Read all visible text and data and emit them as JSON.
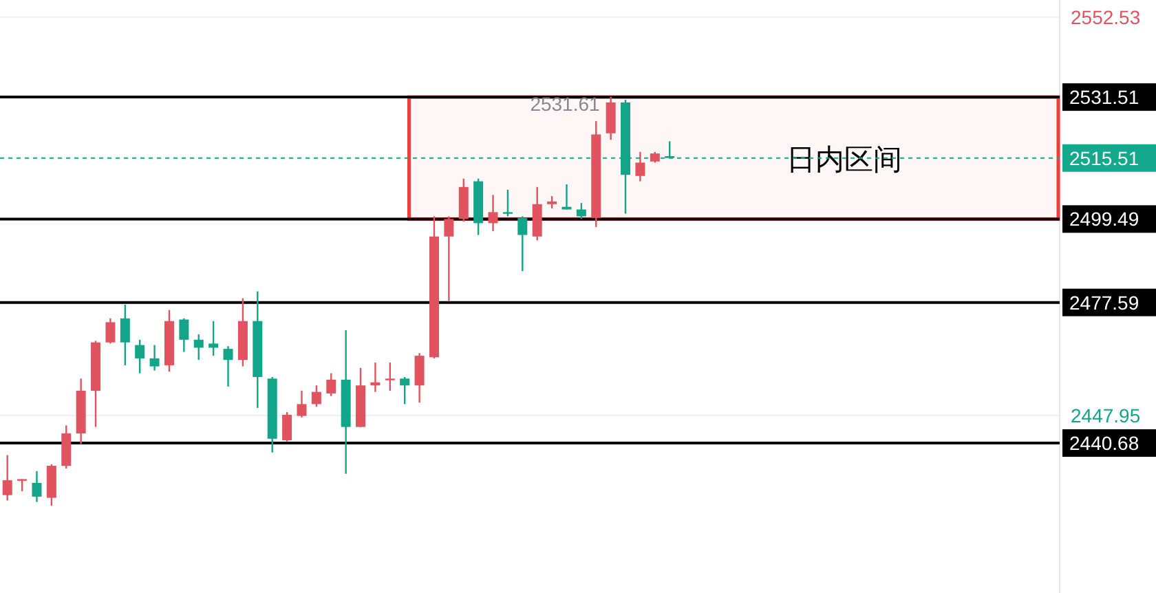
{
  "chart_data": {
    "type": "candlestick",
    "categories": [
      null,
      null,
      null,
      null,
      null,
      null,
      null,
      null,
      null,
      null,
      null,
      null,
      null,
      null,
      null,
      null,
      null,
      null,
      null,
      null,
      null,
      null,
      null,
      null,
      null,
      null,
      null,
      null,
      null,
      null,
      null,
      null,
      null,
      null,
      null,
      null,
      null,
      null,
      null,
      null,
      null,
      null,
      null,
      null,
      null,
      null,
      null,
      null,
      null,
      null,
      null,
      null,
      null,
      null,
      null,
      null,
      null,
      null,
      null,
      null,
      null,
      null,
      null,
      null,
      null,
      null,
      null,
      null,
      null,
      null,
      null,
      null
    ],
    "ohlc": [
      [
        2427.0,
        2437.5,
        2425.6,
        2430.9
      ],
      [
        2430.9,
        2431.2,
        2428.0,
        2431.2
      ],
      [
        2430.2,
        2433.3,
        2425.2,
        2426.6
      ],
      [
        2426.3,
        2435.1,
        2424.2,
        2434.7
      ],
      [
        2434.7,
        2445.3,
        2434.0,
        2443.2
      ],
      [
        2443.2,
        2457.6,
        2440.4,
        2454.4
      ],
      [
        2454.4,
        2467.5,
        2444.9,
        2467.1
      ],
      [
        2467.1,
        2473.4,
        2466.8,
        2472.4
      ],
      [
        2473.4,
        2477.0,
        2461.1,
        2467.1
      ],
      [
        2466.4,
        2467.8,
        2459.0,
        2462.9
      ],
      [
        2462.9,
        2466.4,
        2459.7,
        2460.8
      ],
      [
        2461.1,
        2475.6,
        2459.4,
        2472.7
      ],
      [
        2473.1,
        2473.4,
        2464.6,
        2467.8
      ],
      [
        2467.8,
        2469.2,
        2462.5,
        2465.7
      ],
      [
        2466.8,
        2472.7,
        2463.6,
        2465.7
      ],
      [
        2465.4,
        2466.1,
        2455.5,
        2462.5
      ],
      [
        2462.5,
        2478.7,
        2460.8,
        2472.7
      ],
      [
        2472.7,
        2480.5,
        2449.9,
        2458.0
      ],
      [
        2457.6,
        2458.0,
        2438.2,
        2441.8
      ],
      [
        2441.4,
        2448.8,
        2441.1,
        2448.1
      ],
      [
        2447.8,
        2454.4,
        2447.4,
        2450.9
      ],
      [
        2450.9,
        2455.8,
        2450.2,
        2454.1
      ],
      [
        2453.7,
        2459.0,
        2453.0,
        2457.3
      ],
      [
        2457.3,
        2470.3,
        2432.6,
        2444.9
      ],
      [
        2444.9,
        2460.4,
        2444.9,
        2455.8
      ],
      [
        2455.8,
        2461.8,
        2454.1,
        2456.6
      ],
      [
        2457.3,
        2461.8,
        2454.4,
        2457.6
      ],
      [
        2457.6,
        2458.0,
        2450.9,
        2455.8
      ],
      [
        2455.8,
        2464.3,
        2451.3,
        2463.6
      ],
      [
        2463.2,
        2500.2,
        2462.9,
        2494.9
      ],
      [
        2494.9,
        2500.2,
        2478.0,
        2499.5
      ],
      [
        2499.5,
        2510.1,
        2498.8,
        2507.9
      ],
      [
        2509.4,
        2510.1,
        2495.3,
        2498.4
      ],
      [
        2498.4,
        2505.8,
        2496.3,
        2501.3
      ],
      [
        2501.3,
        2507.2,
        2500.2,
        2500.9
      ],
      [
        2499.8,
        2500.2,
        2485.8,
        2495.3
      ],
      [
        2494.9,
        2507.9,
        2493.9,
        2503.4
      ],
      [
        2503.4,
        2505.5,
        2502.3,
        2504.1
      ],
      [
        2502.7,
        2508.6,
        2502.0,
        2502.0
      ],
      [
        2502.0,
        2503.7,
        2499.5,
        2500.2
      ],
      [
        2499.8,
        2525.2,
        2497.4,
        2521.7
      ],
      [
        2522.0,
        2531.61,
        2520.3,
        2530.1
      ],
      [
        2530.1,
        2530.8,
        2500.9,
        2511.1
      ],
      [
        2510.8,
        2517.1,
        2509.4,
        2514.3
      ],
      [
        2514.6,
        2517.1,
        2514.3,
        2516.7
      ],
      [
        2516.0,
        2519.9,
        2515.51,
        2515.51
      ],
      null,
      null,
      null,
      null,
      null,
      null,
      null,
      null,
      null,
      null,
      null,
      null,
      null,
      null,
      null,
      null,
      null,
      null,
      null,
      null,
      null,
      null,
      null,
      null,
      null,
      null
    ],
    "ylim": [
      2401.3,
      2557.0
    ],
    "yticks": [
      2552.53,
      2447.95
    ],
    "grid": "y",
    "ref_lines": [
      {
        "axis": "y",
        "value": 2531.51,
        "label": "2531.51",
        "color": "#000000"
      },
      {
        "axis": "y",
        "value": 2515.51,
        "label": "2515.51",
        "color": "#14a88c",
        "line_style": "dashed"
      },
      {
        "axis": "y",
        "value": 2499.49,
        "label": "2499.49",
        "color": "#000000"
      },
      {
        "axis": "y",
        "value": 2477.59,
        "label": "2477.59",
        "color": "#000000"
      },
      {
        "axis": "y",
        "value": 2440.68,
        "label": "2440.68",
        "color": "#000000"
      }
    ],
    "bands": [
      {
        "axis": "y",
        "from": 2499.49,
        "to": 2531.51,
        "label": "日内区间",
        "color": "#f23b3b"
      }
    ],
    "annotations": [
      "2531.61"
    ]
  }
}
